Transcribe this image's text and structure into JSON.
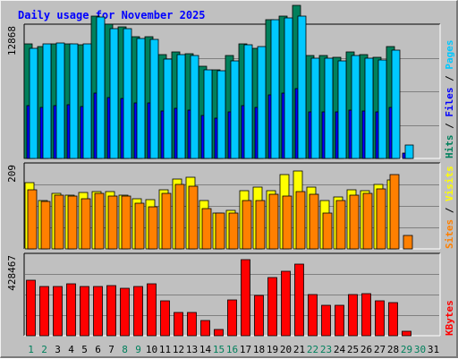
{
  "chart_data": {
    "type": "bar",
    "title": "Daily usage for November 2025",
    "categories": [
      "1",
      "2",
      "3",
      "4",
      "5",
      "6",
      "7",
      "8",
      "9",
      "10",
      "11",
      "12",
      "13",
      "14",
      "15",
      "16",
      "17",
      "18",
      "19",
      "20",
      "21",
      "22",
      "23",
      "24",
      "25",
      "26",
      "27",
      "28",
      "29",
      "30",
      "31"
    ],
    "weekend_days": [
      1,
      2,
      8,
      9,
      15,
      16,
      22,
      23,
      29,
      30
    ],
    "panels": [
      {
        "name": "hits-files-pages",
        "axis_max_label": "12868",
        "ymax": 12868,
        "right_label": [
          {
            "text": "Hits",
            "color": "#00805c"
          },
          {
            "text": " / ",
            "color": "#000000"
          },
          {
            "text": "Files",
            "color": "#0000ff"
          },
          {
            "text": " / ",
            "color": "#000000"
          },
          {
            "text": "Pages",
            "color": "#00c8ff"
          }
        ],
        "series": [
          {
            "name": "Hits",
            "color": "#00805c",
            "values": [
              11300,
              11000,
              11300,
              11300,
              11200,
              14000,
              13200,
              13000,
              12000,
              12000,
              10200,
              10500,
              10300,
              9100,
              8700,
              10100,
              11300,
              10800,
              13700,
              14000,
              15100,
              10100,
              10100,
              10000,
              10500,
              10200,
              10000,
              11000,
              0,
              0,
              0
            ]
          },
          {
            "name": "Files",
            "color": "#0000ff",
            "values": [
              5200,
              5000,
              5200,
              5300,
              5100,
              6400,
              6000,
              5900,
              5500,
              5500,
              4700,
              4900,
              4800,
              4200,
              4000,
              4600,
              5200,
              5000,
              6300,
              6400,
              6900,
              4600,
              4600,
              4600,
              4800,
              4700,
              4600,
              5000,
              500,
              0,
              0
            ]
          },
          {
            "name": "Pages",
            "color": "#00c8ff",
            "values": [
              10800,
              11300,
              11400,
              11300,
              11300,
              13900,
              12800,
              12800,
              11800,
              11700,
              9800,
              10200,
              10100,
              8700,
              8600,
              9600,
              11200,
              11000,
              13700,
              13800,
              14000,
              9900,
              9900,
              9600,
              10100,
              9900,
              9700,
              10700,
              1300,
              0,
              0
            ]
          }
        ]
      },
      {
        "name": "visits-sites",
        "axis_max_label": "209",
        "ymax": 209,
        "right_label": [
          {
            "text": "Sites",
            "color": "#ff8000"
          },
          {
            "text": " / ",
            "color": "#000000"
          },
          {
            "text": "Visits",
            "color": "#ffff00"
          }
        ],
        "series": [
          {
            "name": "Visits",
            "color": "#ffff00",
            "values": [
              168,
              122,
              140,
              136,
              142,
              146,
              146,
              137,
              127,
              125,
              150,
              178,
              182,
              122,
              92,
              97,
              148,
              156,
              148,
              189,
              198,
              157,
              123,
              132,
              150,
              148,
              163,
              174,
              0,
              0,
              0
            ]
          },
          {
            "name": "Sites",
            "color": "#ff8000",
            "values": [
              151,
              120,
              137,
              134,
              128,
              141,
              135,
              133,
              116,
              106,
              141,
              164,
              159,
              102,
              90,
              91,
              123,
              122,
              138,
              135,
              146,
              138,
              91,
              123,
              136,
              141,
              153,
              188,
              35,
              0,
              0
            ]
          }
        ]
      },
      {
        "name": "kbytes",
        "axis_max_label": "428467",
        "ymax": 428467,
        "right_label": [
          {
            "text": "KBytes",
            "color": "#ff0000"
          }
        ],
        "series": [
          {
            "name": "KBytes",
            "color": "#ff0000",
            "values": [
              300000,
              270000,
              270000,
              280000,
              270000,
              270000,
              275000,
              260000,
              270000,
              280000,
              190000,
              125000,
              125000,
              85000,
              35000,
              195000,
              412000,
              220000,
              315000,
              350000,
              390000,
              225000,
              165000,
              165000,
              225000,
              230000,
              190000,
              180000,
              25000,
              0,
              0
            ]
          }
        ]
      }
    ]
  }
}
